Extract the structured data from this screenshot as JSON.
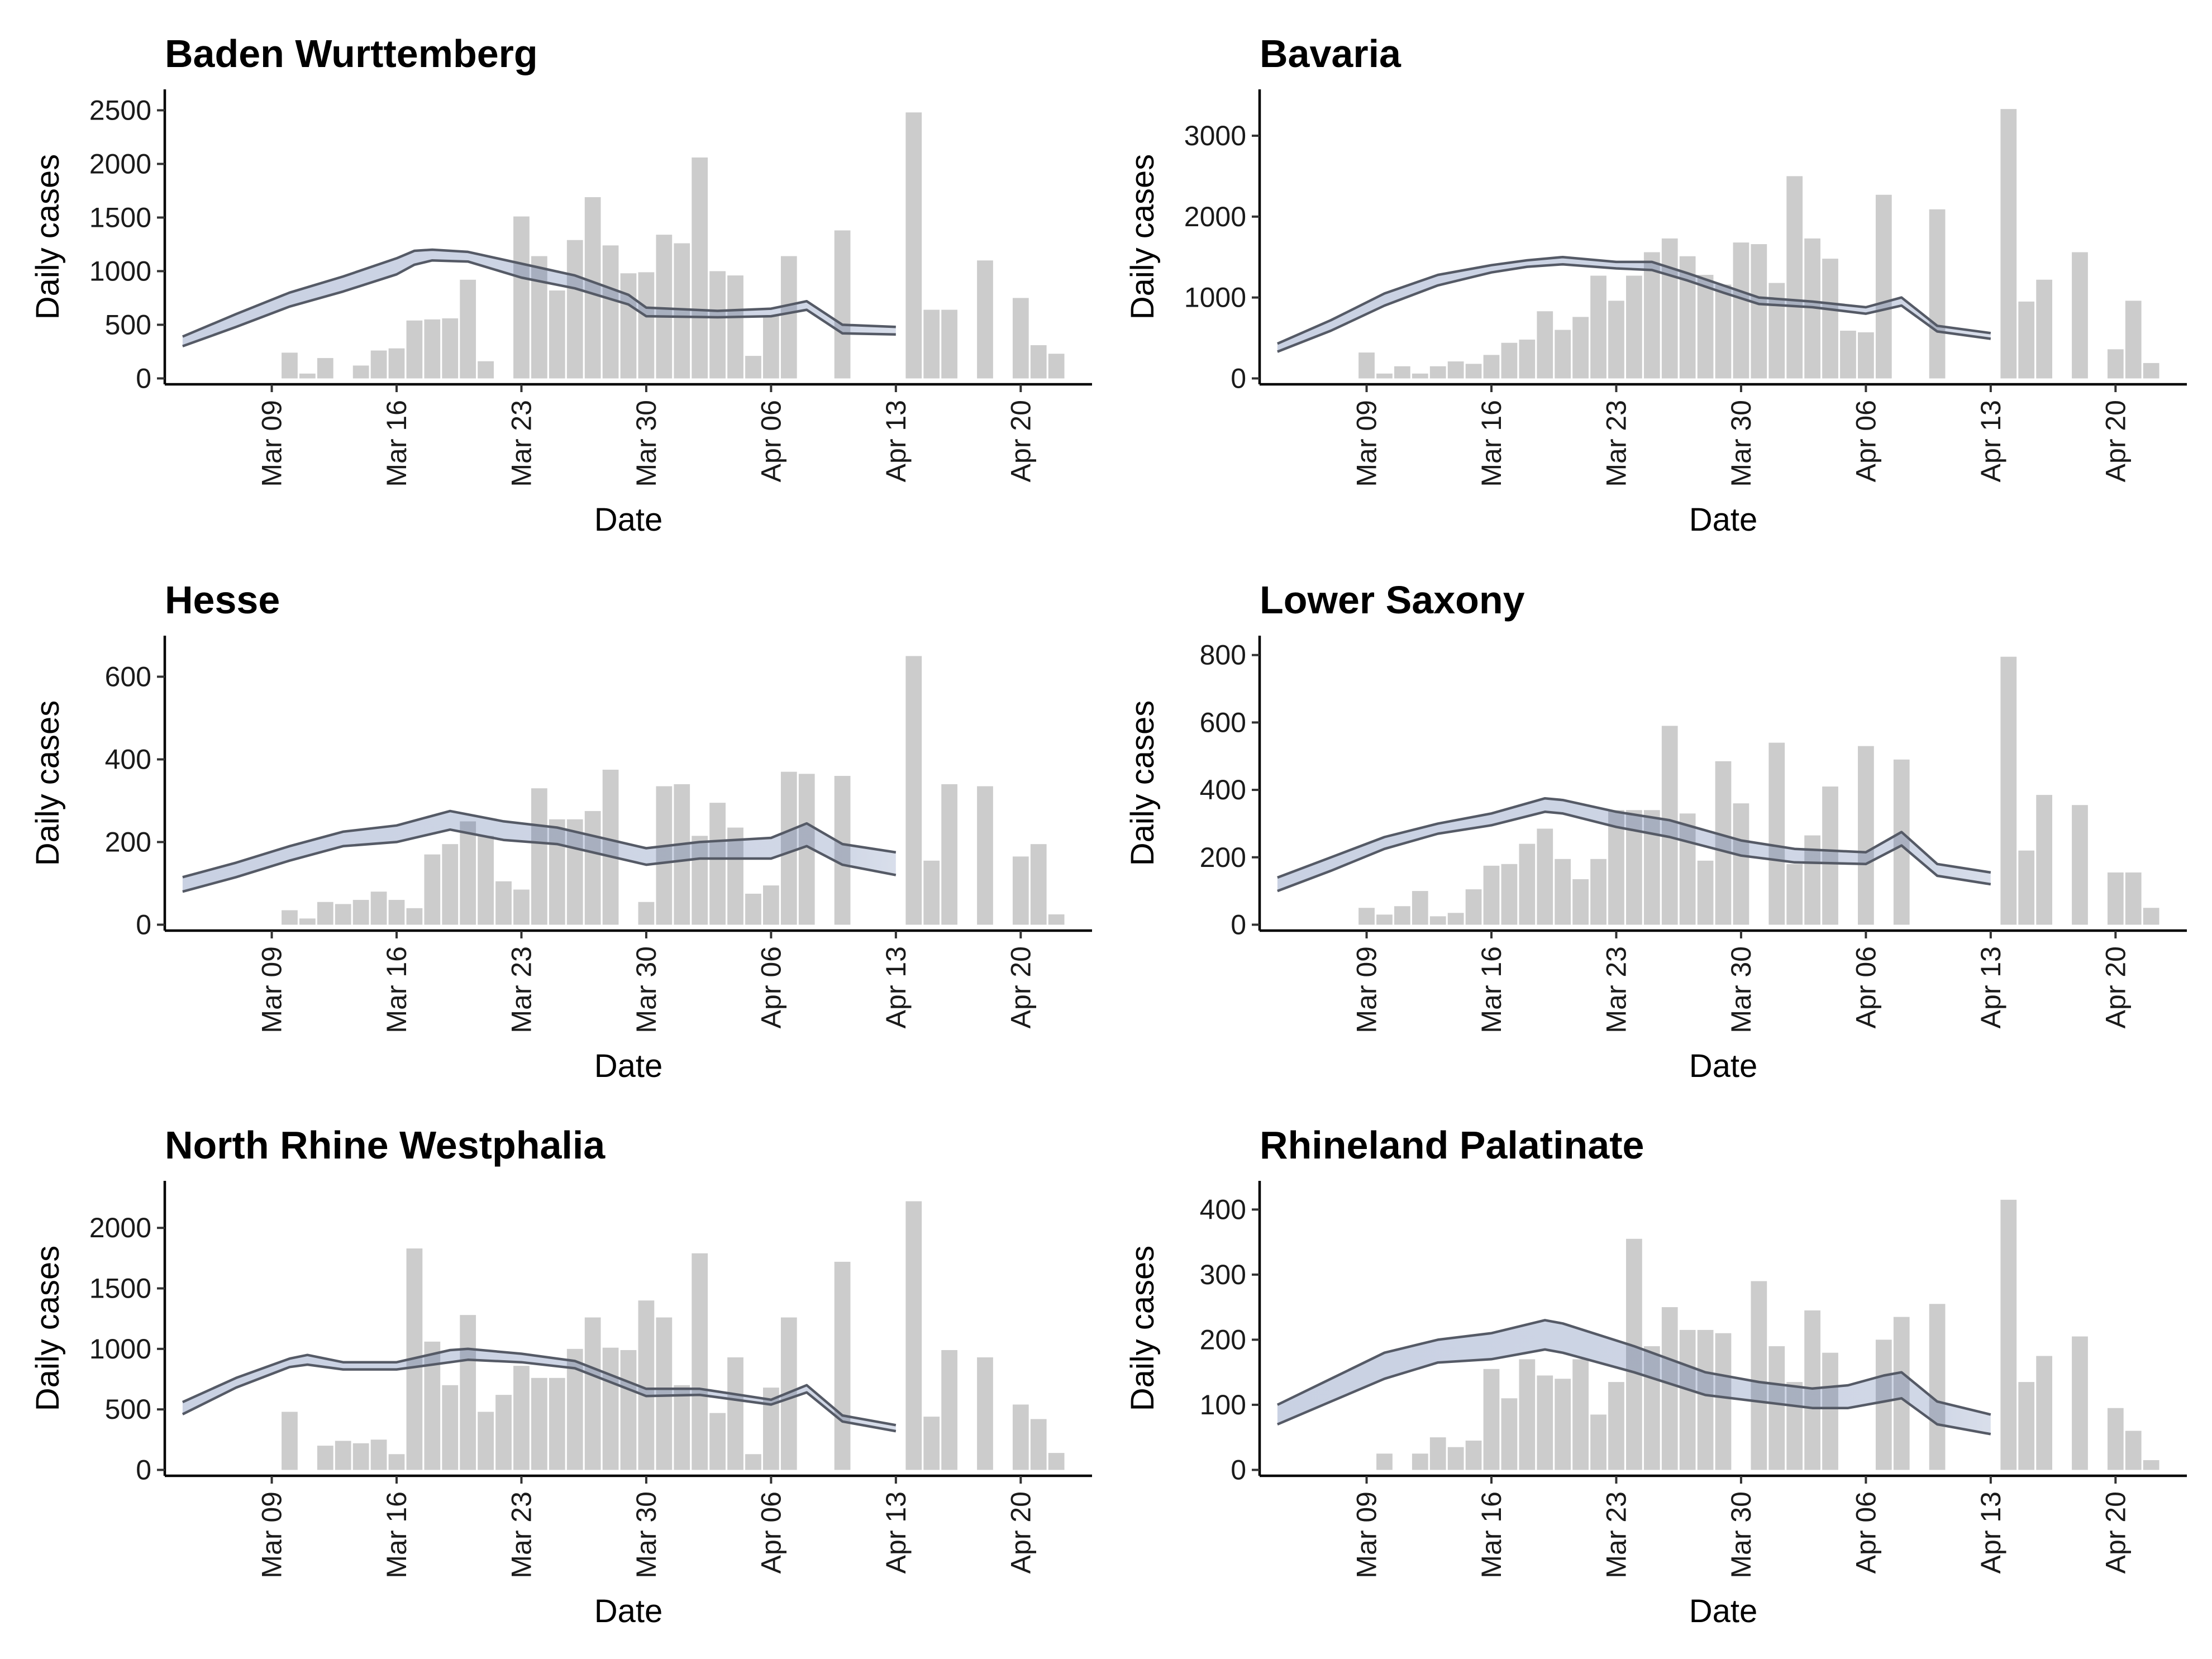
{
  "chart_data": [
    {
      "type": "bar",
      "title": "Baden Wurttemberg",
      "xlabel": "Date",
      "ylabel": "Daily cases",
      "x_range": [
        "2020-03-03",
        "2020-04-24"
      ],
      "ylim": [
        0,
        2640
      ],
      "yticks": [
        0,
        500,
        1000,
        1500,
        2000,
        2500
      ],
      "xtick_labels": [
        "Mar 09",
        "Mar 16",
        "Mar 23",
        "Mar 30",
        "Apr 06",
        "Apr 13",
        "Apr 20"
      ],
      "bar_dates": [
        "2020-03-10",
        "2020-03-11",
        "2020-03-12",
        "2020-03-14",
        "2020-03-15",
        "2020-03-16",
        "2020-03-17",
        "2020-03-18",
        "2020-03-19",
        "2020-03-20",
        "2020-03-21",
        "2020-03-23",
        "2020-03-24",
        "2020-03-25",
        "2020-03-26",
        "2020-03-27",
        "2020-03-28",
        "2020-03-29",
        "2020-03-30",
        "2020-03-31",
        "2020-04-01",
        "2020-04-02",
        "2020-04-03",
        "2020-04-04",
        "2020-04-05",
        "2020-04-06",
        "2020-04-07",
        "2020-04-08",
        "2020-04-10",
        "2020-04-14",
        "2020-04-15",
        "2020-04-16",
        "2020-04-18",
        "2020-04-20",
        "2020-04-21",
        "2020-04-22"
      ],
      "bar_values": [
        240,
        45,
        190,
        120,
        260,
        280,
        540,
        550,
        560,
        920,
        160,
        1510,
        1140,
        820,
        1290,
        1690,
        1240,
        980,
        990,
        1340,
        1260,
        2060,
        1000,
        960,
        210,
        580,
        1140,
        0,
        1380,
        2480,
        640,
        640,
        1100,
        750,
        310,
        230
      ],
      "estimate_dates": [
        "2020-03-04",
        "2020-03-07",
        "2020-03-10",
        "2020-03-13",
        "2020-03-16",
        "2020-03-17",
        "2020-03-18",
        "2020-03-20",
        "2020-03-23",
        "2020-03-26",
        "2020-03-29",
        "2020-03-30",
        "2020-04-03",
        "2020-04-06",
        "2020-04-08",
        "2020-04-10",
        "2020-04-13"
      ],
      "upper": [
        390,
        600,
        800,
        950,
        1120,
        1190,
        1200,
        1180,
        1070,
        960,
        780,
        660,
        630,
        650,
        720,
        500,
        480
      ],
      "lower": [
        300,
        480,
        670,
        810,
        970,
        1060,
        1100,
        1090,
        940,
        840,
        690,
        580,
        570,
        580,
        640,
        420,
        410
      ],
      "forecast_from": "2020-04-10"
    },
    {
      "type": "bar",
      "title": "Bavaria",
      "xlabel": "Date",
      "ylabel": "Daily cases",
      "x_range": [
        "2020-03-03",
        "2020-04-24"
      ],
      "ylim": [
        0,
        3500
      ],
      "yticks": [
        0,
        1000,
        2000,
        3000
      ],
      "xtick_labels": [
        "Mar 09",
        "Mar 16",
        "Mar 23",
        "Mar 30",
        "Apr 06",
        "Apr 13",
        "Apr 20"
      ],
      "bar_dates": [
        "2020-03-09",
        "2020-03-10",
        "2020-03-11",
        "2020-03-12",
        "2020-03-13",
        "2020-03-14",
        "2020-03-15",
        "2020-03-16",
        "2020-03-17",
        "2020-03-18",
        "2020-03-19",
        "2020-03-20",
        "2020-03-21",
        "2020-03-22",
        "2020-03-23",
        "2020-03-24",
        "2020-03-25",
        "2020-03-26",
        "2020-03-27",
        "2020-03-28",
        "2020-03-29",
        "2020-03-30",
        "2020-03-31",
        "2020-04-01",
        "2020-04-02",
        "2020-04-03",
        "2020-04-04",
        "2020-04-05",
        "2020-04-06",
        "2020-04-07",
        "2020-04-08",
        "2020-04-10",
        "2020-04-14",
        "2020-04-15",
        "2020-04-16",
        "2020-04-18",
        "2020-04-20",
        "2020-04-21",
        "2020-04-22"
      ],
      "bar_values": [
        320,
        60,
        150,
        60,
        150,
        210,
        180,
        290,
        440,
        480,
        830,
        600,
        760,
        1270,
        960,
        1270,
        1560,
        1730,
        1510,
        1280,
        1160,
        1680,
        1660,
        1180,
        2500,
        1730,
        1480,
        590,
        570,
        2270,
        0,
        2090,
        3330,
        950,
        1220,
        1560,
        360,
        960,
        190
      ],
      "estimate_dates": [
        "2020-03-04",
        "2020-03-07",
        "2020-03-10",
        "2020-03-13",
        "2020-03-16",
        "2020-03-18",
        "2020-03-20",
        "2020-03-23",
        "2020-03-25",
        "2020-03-27",
        "2020-03-29",
        "2020-03-31",
        "2020-04-03",
        "2020-04-06",
        "2020-04-08",
        "2020-04-10",
        "2020-04-13"
      ],
      "upper": [
        430,
        720,
        1050,
        1280,
        1400,
        1460,
        1500,
        1440,
        1440,
        1300,
        1150,
        1000,
        950,
        880,
        1000,
        650,
        560
      ],
      "lower": [
        330,
        590,
        900,
        1150,
        1310,
        1380,
        1410,
        1360,
        1340,
        1210,
        1060,
        920,
        880,
        800,
        900,
        580,
        490
      ],
      "forecast_from": "2020-04-10"
    },
    {
      "type": "bar",
      "title": "Hesse",
      "xlabel": "Date",
      "ylabel": "Daily cases",
      "x_range": [
        "2020-03-03",
        "2020-04-24"
      ],
      "ylim": [
        0,
        685
      ],
      "yticks": [
        0,
        200,
        400,
        600
      ],
      "xtick_labels": [
        "Mar 09",
        "Mar 16",
        "Mar 23",
        "Mar 30",
        "Apr 06",
        "Apr 13",
        "Apr 20"
      ],
      "bar_dates": [
        "2020-03-10",
        "2020-03-11",
        "2020-03-12",
        "2020-03-13",
        "2020-03-14",
        "2020-03-15",
        "2020-03-16",
        "2020-03-17",
        "2020-03-18",
        "2020-03-19",
        "2020-03-20",
        "2020-03-21",
        "2020-03-22",
        "2020-03-23",
        "2020-03-24",
        "2020-03-25",
        "2020-03-26",
        "2020-03-27",
        "2020-03-28",
        "2020-03-30",
        "2020-03-31",
        "2020-04-01",
        "2020-04-02",
        "2020-04-03",
        "2020-04-04",
        "2020-04-05",
        "2020-04-06",
        "2020-04-07",
        "2020-04-08",
        "2020-04-10",
        "2020-04-14",
        "2020-04-15",
        "2020-04-16",
        "2020-04-18",
        "2020-04-20",
        "2020-04-21",
        "2020-04-22"
      ],
      "bar_values": [
        35,
        15,
        55,
        50,
        60,
        80,
        60,
        40,
        170,
        195,
        250,
        215,
        105,
        85,
        330,
        255,
        255,
        275,
        375,
        55,
        335,
        340,
        215,
        295,
        235,
        75,
        95,
        370,
        365,
        360,
        650,
        155,
        340,
        335,
        165,
        195,
        25
      ],
      "estimate_dates": [
        "2020-03-04",
        "2020-03-07",
        "2020-03-10",
        "2020-03-13",
        "2020-03-16",
        "2020-03-19",
        "2020-03-22",
        "2020-03-25",
        "2020-03-28",
        "2020-03-30",
        "2020-04-02",
        "2020-04-06",
        "2020-04-08",
        "2020-04-10",
        "2020-04-13"
      ],
      "upper": [
        115,
        150,
        190,
        225,
        240,
        275,
        250,
        235,
        205,
        185,
        200,
        210,
        245,
        195,
        175
      ],
      "lower": [
        80,
        115,
        155,
        190,
        200,
        230,
        205,
        195,
        165,
        145,
        160,
        160,
        190,
        145,
        120
      ],
      "forecast_from": "2020-04-10"
    },
    {
      "type": "bar",
      "title": "Lower Saxony",
      "xlabel": "Date",
      "ylabel": "Daily cases",
      "x_range": [
        "2020-03-03",
        "2020-04-24"
      ],
      "ylim": [
        0,
        840
      ],
      "yticks": [
        0,
        200,
        400,
        600,
        800
      ],
      "xtick_labels": [
        "Mar 09",
        "Mar 16",
        "Mar 23",
        "Mar 30",
        "Apr 06",
        "Apr 13",
        "Apr 20"
      ],
      "bar_dates": [
        "2020-03-09",
        "2020-03-10",
        "2020-03-11",
        "2020-03-12",
        "2020-03-13",
        "2020-03-14",
        "2020-03-15",
        "2020-03-16",
        "2020-03-17",
        "2020-03-18",
        "2020-03-19",
        "2020-03-20",
        "2020-03-21",
        "2020-03-22",
        "2020-03-23",
        "2020-03-24",
        "2020-03-25",
        "2020-03-26",
        "2020-03-27",
        "2020-03-28",
        "2020-03-29",
        "2020-03-30",
        "2020-03-31",
        "2020-04-01",
        "2020-04-02",
        "2020-04-03",
        "2020-04-04",
        "2020-04-05",
        "2020-04-06",
        "2020-04-07",
        "2020-04-08",
        "2020-04-10",
        "2020-04-14",
        "2020-04-15",
        "2020-04-16",
        "2020-04-18",
        "2020-04-20",
        "2020-04-21",
        "2020-04-22"
      ],
      "bar_values": [
        50,
        30,
        55,
        100,
        25,
        35,
        105,
        175,
        180,
        240,
        285,
        195,
        135,
        195,
        340,
        340,
        340,
        590,
        330,
        190,
        485,
        360,
        0,
        540,
        180,
        265,
        410,
        0,
        530,
        0,
        490,
        0,
        795,
        220,
        385,
        355,
        155,
        155,
        50
      ],
      "estimate_dates": [
        "2020-03-04",
        "2020-03-07",
        "2020-03-10",
        "2020-03-13",
        "2020-03-16",
        "2020-03-19",
        "2020-03-20",
        "2020-03-23",
        "2020-03-26",
        "2020-03-30",
        "2020-04-02",
        "2020-04-06",
        "2020-04-08",
        "2020-04-10",
        "2020-04-13"
      ],
      "upper": [
        140,
        200,
        260,
        300,
        330,
        375,
        370,
        335,
        310,
        250,
        225,
        215,
        275,
        180,
        155
      ],
      "lower": [
        100,
        160,
        225,
        270,
        295,
        335,
        330,
        290,
        260,
        205,
        185,
        180,
        235,
        145,
        120
      ],
      "forecast_from": "2020-04-10"
    },
    {
      "type": "bar",
      "title": "North Rhine Westphalia",
      "xlabel": "Date",
      "ylabel": "Daily cases",
      "x_range": [
        "2020-03-03",
        "2020-04-24"
      ],
      "ylim": [
        0,
        2340
      ],
      "yticks": [
        0,
        500,
        1000,
        1500,
        2000
      ],
      "xtick_labels": [
        "Mar 09",
        "Mar 16",
        "Mar 23",
        "Mar 30",
        "Apr 06",
        "Apr 13",
        "Apr 20"
      ],
      "bar_dates": [
        "2020-03-10",
        "2020-03-12",
        "2020-03-13",
        "2020-03-14",
        "2020-03-15",
        "2020-03-16",
        "2020-03-17",
        "2020-03-18",
        "2020-03-19",
        "2020-03-20",
        "2020-03-21",
        "2020-03-22",
        "2020-03-23",
        "2020-03-24",
        "2020-03-25",
        "2020-03-26",
        "2020-03-27",
        "2020-03-28",
        "2020-03-29",
        "2020-03-30",
        "2020-03-31",
        "2020-04-01",
        "2020-04-02",
        "2020-04-03",
        "2020-04-04",
        "2020-04-05",
        "2020-04-06",
        "2020-04-07",
        "2020-04-08",
        "2020-04-10",
        "2020-04-14",
        "2020-04-15",
        "2020-04-16",
        "2020-04-18",
        "2020-04-20",
        "2020-04-21",
        "2020-04-22"
      ],
      "bar_values": [
        480,
        200,
        240,
        220,
        250,
        130,
        1830,
        1060,
        700,
        1280,
        480,
        620,
        860,
        760,
        760,
        1000,
        1260,
        1010,
        990,
        1400,
        1260,
        700,
        1790,
        470,
        930,
        130,
        680,
        1260,
        0,
        1720,
        2220,
        440,
        990,
        930,
        540,
        420,
        140
      ],
      "estimate_dates": [
        "2020-03-04",
        "2020-03-07",
        "2020-03-10",
        "2020-03-11",
        "2020-03-13",
        "2020-03-16",
        "2020-03-19",
        "2020-03-20",
        "2020-03-23",
        "2020-03-26",
        "2020-03-30",
        "2020-04-02",
        "2020-04-06",
        "2020-04-08",
        "2020-04-10",
        "2020-04-13"
      ],
      "upper": [
        560,
        760,
        920,
        950,
        890,
        890,
        990,
        1000,
        960,
        900,
        670,
        670,
        580,
        700,
        450,
        370
      ],
      "lower": [
        460,
        680,
        850,
        870,
        830,
        830,
        890,
        910,
        890,
        840,
        610,
        620,
        540,
        640,
        400,
        320
      ],
      "forecast_from": "2020-04-10"
    },
    {
      "type": "bar",
      "title": "Rhineland Palatinate",
      "xlabel": "Date",
      "ylabel": "Daily cases",
      "x_range": [
        "2020-03-03",
        "2020-04-24"
      ],
      "ylim": [
        0,
        435
      ],
      "yticks": [
        0,
        100,
        200,
        300,
        400
      ],
      "xtick_labels": [
        "Mar 09",
        "Mar 16",
        "Mar 23",
        "Mar 30",
        "Apr 06",
        "Apr 13",
        "Apr 20"
      ],
      "bar_dates": [
        "2020-03-10",
        "2020-03-12",
        "2020-03-13",
        "2020-03-14",
        "2020-03-15",
        "2020-03-16",
        "2020-03-17",
        "2020-03-18",
        "2020-03-19",
        "2020-03-20",
        "2020-03-21",
        "2020-03-22",
        "2020-03-23",
        "2020-03-24",
        "2020-03-25",
        "2020-03-26",
        "2020-03-27",
        "2020-03-28",
        "2020-03-29",
        "2020-03-30",
        "2020-03-31",
        "2020-04-01",
        "2020-04-02",
        "2020-04-03",
        "2020-04-04",
        "2020-04-05",
        "2020-04-07",
        "2020-04-08",
        "2020-04-10",
        "2020-04-14",
        "2020-04-15",
        "2020-04-16",
        "2020-04-18",
        "2020-04-20",
        "2020-04-21",
        "2020-04-22"
      ],
      "bar_values": [
        25,
        25,
        50,
        35,
        45,
        155,
        110,
        170,
        145,
        140,
        170,
        85,
        135,
        355,
        190,
        250,
        215,
        215,
        210,
        0,
        290,
        190,
        135,
        245,
        180,
        0,
        200,
        235,
        255,
        415,
        135,
        175,
        205,
        95,
        60,
        15
      ],
      "estimate_dates": [
        "2020-03-04",
        "2020-03-07",
        "2020-03-10",
        "2020-03-13",
        "2020-03-16",
        "2020-03-19",
        "2020-03-20",
        "2020-03-24",
        "2020-03-28",
        "2020-03-31",
        "2020-04-03",
        "2020-04-05",
        "2020-04-07",
        "2020-04-08",
        "2020-04-10",
        "2020-04-13"
      ],
      "upper": [
        100,
        140,
        180,
        200,
        210,
        230,
        225,
        190,
        150,
        135,
        125,
        130,
        145,
        150,
        105,
        85
      ],
      "lower": [
        70,
        105,
        140,
        165,
        170,
        185,
        180,
        150,
        115,
        105,
        95,
        95,
        105,
        110,
        70,
        55
      ],
      "forecast_from": "2020-04-10"
    }
  ]
}
